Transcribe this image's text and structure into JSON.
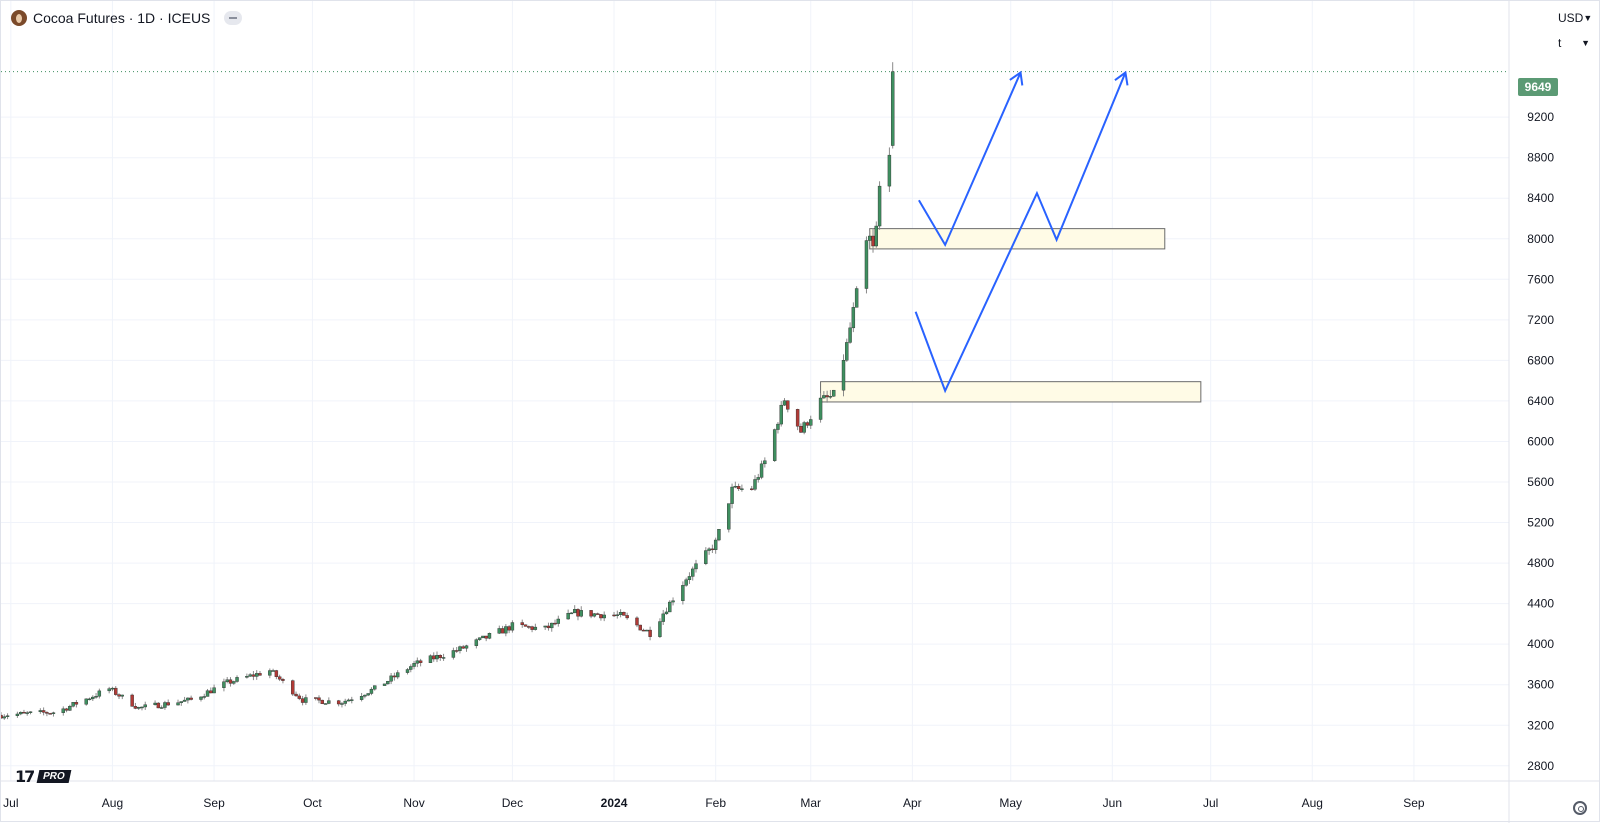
{
  "header": {
    "title": "Cocoa Futures · 1D · ICEUS",
    "currency": "USD",
    "unit": "t"
  },
  "last_price_label": "9649",
  "logo": {
    "mark": "17",
    "badge": "PRO"
  },
  "colors": {
    "up": "#3f8f60",
    "down": "#b03a36",
    "price_tag": "#5b9a74",
    "projection": "#2962ff",
    "zone_fill": "#fffbe6",
    "grid": "#f0f3fa"
  },
  "chart_data": {
    "type": "candlestick",
    "title": "Cocoa Futures · 1D · ICEUS",
    "x_range": [
      "2023-06-28",
      "2024-09-30"
    ],
    "y_range": [
      2650,
      10050
    ],
    "y_ticks": [
      2800,
      3200,
      3600,
      4000,
      4400,
      4800,
      5200,
      5600,
      6000,
      6400,
      6800,
      7200,
      7600,
      8000,
      8400,
      8800,
      9200
    ],
    "x_ticks": [
      {
        "date": "2023-07-01",
        "label": "Jul"
      },
      {
        "date": "2023-08-01",
        "label": "Aug"
      },
      {
        "date": "2023-09-01",
        "label": "Sep"
      },
      {
        "date": "2023-10-01",
        "label": "Oct"
      },
      {
        "date": "2023-11-01",
        "label": "Nov"
      },
      {
        "date": "2023-12-01",
        "label": "Dec"
      },
      {
        "date": "2024-01-01",
        "label": "2024"
      },
      {
        "date": "2024-02-01",
        "label": "Feb"
      },
      {
        "date": "2024-03-01",
        "label": "Mar"
      },
      {
        "date": "2024-04-01",
        "label": "Apr"
      },
      {
        "date": "2024-05-01",
        "label": "May"
      },
      {
        "date": "2024-06-01",
        "label": "Jun"
      },
      {
        "date": "2024-07-01",
        "label": "Jul"
      },
      {
        "date": "2024-08-01",
        "label": "Aug"
      },
      {
        "date": "2024-09-01",
        "label": "Sep"
      }
    ],
    "last_price": 9649,
    "close_anchors": [
      [
        "2023-06-28",
        3300
      ],
      [
        "2023-07-15",
        3330
      ],
      [
        "2023-07-31",
        3560
      ],
      [
        "2023-08-09",
        3370
      ],
      [
        "2023-08-25",
        3450
      ],
      [
        "2023-09-05",
        3620
      ],
      [
        "2023-09-18",
        3740
      ],
      [
        "2023-09-28",
        3450
      ],
      [
        "2023-10-10",
        3430
      ],
      [
        "2023-10-20",
        3560
      ],
      [
        "2023-11-01",
        3800
      ],
      [
        "2023-11-15",
        3950
      ],
      [
        "2023-12-01",
        4180
      ],
      [
        "2023-12-11",
        4150
      ],
      [
        "2023-12-20",
        4310
      ],
      [
        "2024-01-03",
        4280
      ],
      [
        "2024-01-12",
        4110
      ],
      [
        "2024-01-23",
        4650
      ],
      [
        "2024-02-01",
        5000
      ],
      [
        "2024-02-06",
        5520
      ],
      [
        "2024-02-12",
        5540
      ],
      [
        "2024-02-16",
        5800
      ],
      [
        "2024-02-22",
        6420
      ],
      [
        "2024-02-27",
        6100
      ],
      [
        "2024-03-04",
        6400
      ],
      [
        "2024-03-08",
        6450
      ],
      [
        "2024-03-12",
        6950
      ],
      [
        "2024-03-15",
        7450
      ],
      [
        "2024-03-18",
        7950
      ],
      [
        "2024-03-19",
        8000
      ],
      [
        "2024-03-20",
        7900
      ],
      [
        "2024-03-21",
        8100
      ],
      [
        "2024-03-22",
        8500
      ],
      [
        "2024-03-25",
        8900
      ],
      [
        "2024-03-26",
        9649
      ]
    ],
    "zones": [
      {
        "x": [
          "2024-03-19",
          "2024-06-17"
        ],
        "y": [
          7900,
          8100
        ]
      },
      {
        "x": [
          "2024-03-04",
          "2024-06-28"
        ],
        "y": [
          6390,
          6590
        ]
      }
    ],
    "projections": [
      {
        "points": [
          [
            "2024-04-03",
            8380
          ],
          [
            "2024-04-11",
            7940
          ],
          [
            "2024-05-04",
            9640
          ]
        ]
      },
      {
        "points": [
          [
            "2024-04-02",
            7280
          ],
          [
            "2024-04-11",
            6500
          ],
          [
            "2024-05-09",
            8450
          ],
          [
            "2024-05-15",
            7990
          ],
          [
            "2024-06-05",
            9640
          ]
        ]
      }
    ]
  }
}
